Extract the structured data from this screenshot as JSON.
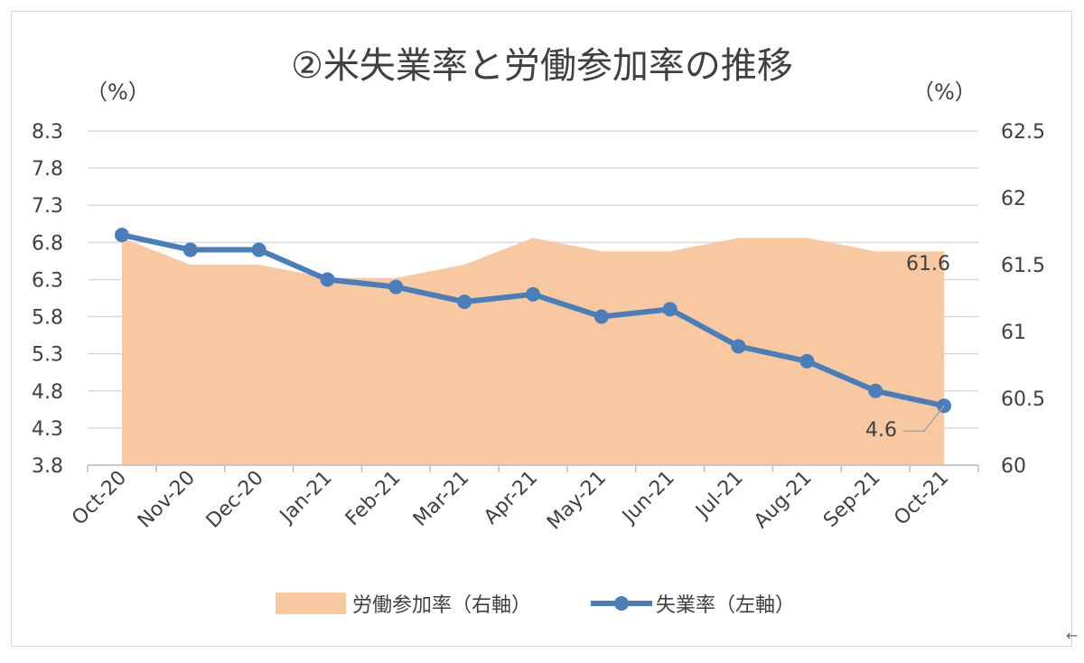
{
  "chart_data": {
    "type": "area+line",
    "title": "②米失業率と労働参加率の推移",
    "y_left_unit": "（%）",
    "y_right_unit": "（%）",
    "categories": [
      "Oct-20",
      "Nov-20",
      "Dec-20",
      "Jan-21",
      "Feb-21",
      "Mar-21",
      "Apr-21",
      "May-21",
      "Jun-21",
      "Jul-21",
      "Aug-21",
      "Sep-21",
      "Oct-21"
    ],
    "y_left": {
      "min": 3.8,
      "max": 8.3,
      "ticks": [
        "8.3",
        "7.8",
        "7.3",
        "6.8",
        "6.3",
        "5.8",
        "5.3",
        "4.8",
        "4.3",
        "3.8"
      ]
    },
    "y_right": {
      "min": 60,
      "max": 62.5,
      "ticks": [
        "62.5",
        "62",
        "61.5",
        "61",
        "60.5",
        "60"
      ]
    },
    "series": [
      {
        "name": "労働参加率（右軸）",
        "axis": "right",
        "kind": "area",
        "color": "#f8c8a0",
        "values": [
          61.7,
          61.5,
          61.5,
          61.4,
          61.4,
          61.5,
          61.7,
          61.6,
          61.6,
          61.7,
          61.7,
          61.6,
          61.6
        ],
        "last_label": "61.6"
      },
      {
        "name": "失業率（左軸）",
        "axis": "left",
        "kind": "line",
        "color": "#4a7ebb",
        "values": [
          6.9,
          6.7,
          6.7,
          6.3,
          6.2,
          6.0,
          6.1,
          5.8,
          5.9,
          5.4,
          5.2,
          4.8,
          4.6
        ],
        "last_label": "4.6"
      }
    ],
    "grid": true,
    "legend_position": "bottom"
  },
  "page": {
    "corner_glyph": "←"
  }
}
